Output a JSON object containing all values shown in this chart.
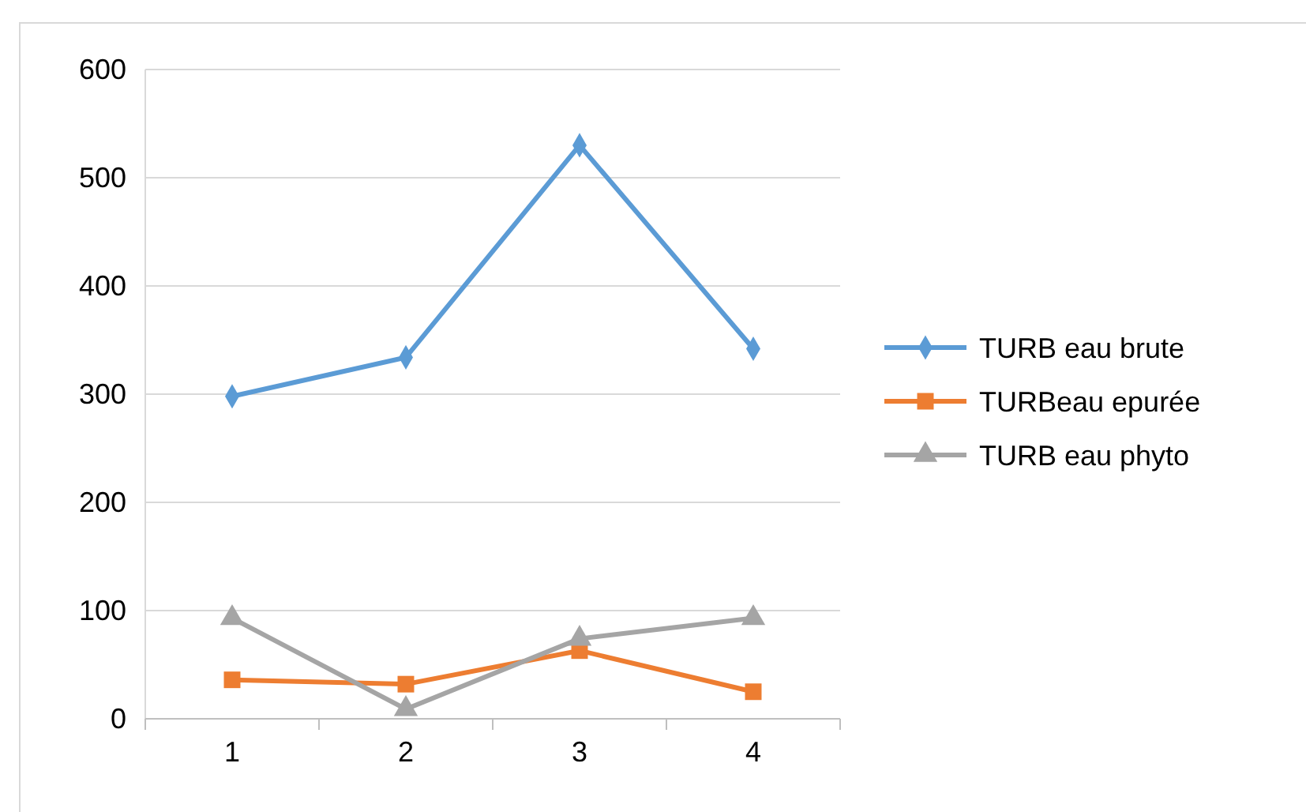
{
  "chart_data": {
    "type": "line",
    "categories": [
      "1",
      "2",
      "3",
      "4"
    ],
    "series": [
      {
        "name": "TURB eau brute",
        "color": "#5b9bd5",
        "marker": "diamond",
        "values": [
          298,
          334,
          530,
          342
        ]
      },
      {
        "name": "TURBeau epurée",
        "color": "#ed7d31",
        "marker": "square",
        "values": [
          36,
          32,
          63,
          25
        ]
      },
      {
        "name": "TURB eau phyto",
        "color": "#a5a5a5",
        "marker": "triangle",
        "values": [
          93,
          9,
          74,
          93
        ]
      }
    ],
    "ylim": [
      0,
      600
    ],
    "yticks": [
      0,
      100,
      200,
      300,
      400,
      500,
      600
    ],
    "grid": "y",
    "legend": "right"
  }
}
